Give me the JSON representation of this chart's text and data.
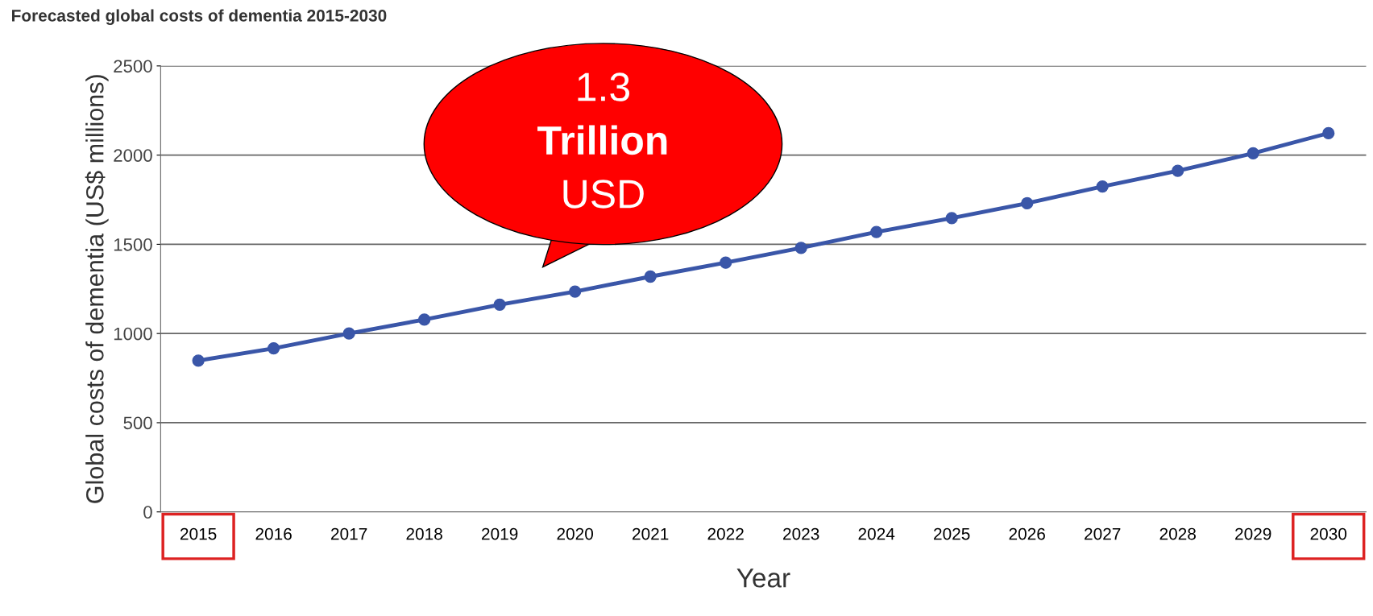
{
  "chart_data": {
    "type": "line",
    "title": "Forecasted global costs of dementia 2015-2030",
    "xlabel": "Year",
    "ylabel": "Global costs of dementia (US$ millions)",
    "categories": [
      "2015",
      "2016",
      "2017",
      "2018",
      "2019",
      "2020",
      "2021",
      "2022",
      "2023",
      "2024",
      "2025",
      "2026",
      "2027",
      "2028",
      "2029",
      "2030"
    ],
    "series": [
      {
        "color": "#3a56a8",
        "values": [
          848,
          917,
          1000,
          1078,
          1162,
          1235,
          1319,
          1397,
          1480,
          1569,
          1647,
          1730,
          1824,
          1912,
          2010,
          2123
        ]
      }
    ],
    "ylim": [
      0,
      2500
    ],
    "yticks": [
      0,
      500,
      1000,
      1500,
      2000,
      2500
    ],
    "grid": "y",
    "marker": "circle",
    "line_style": "solid",
    "legend": false,
    "annotations": [
      "1.3 Trillion USD"
    ]
  }
}
